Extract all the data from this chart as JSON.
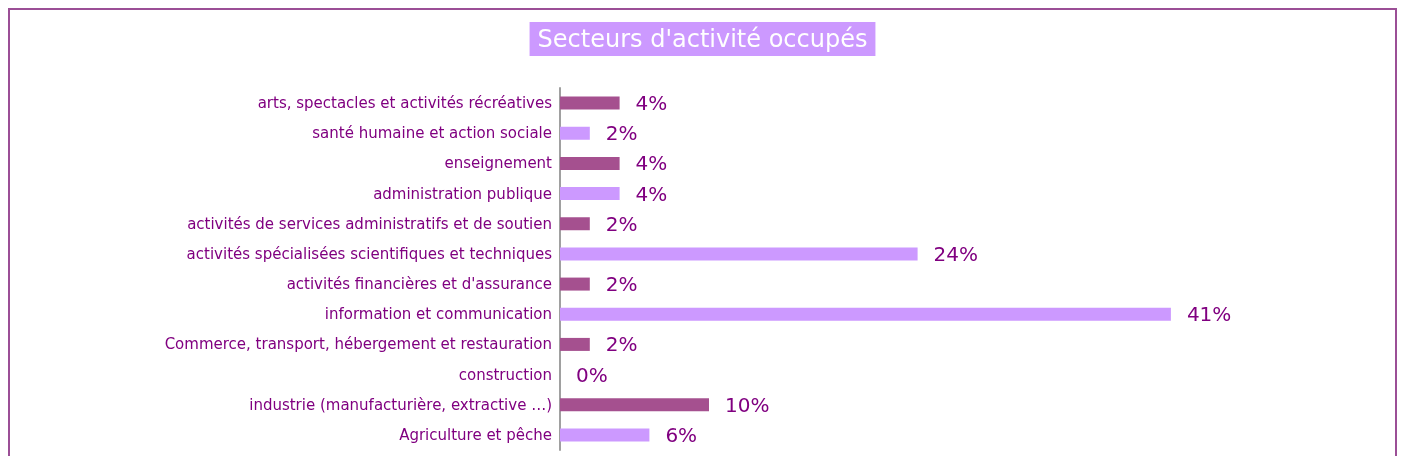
{
  "chart_data": {
    "type": "bar",
    "orientation": "horizontal",
    "title": "Secteurs d'activité occupés",
    "categories": [
      "arts, spectacles et activités récréatives",
      "santé humaine et action sociale",
      "enseignement",
      "administration publique",
      "activités de services administratifs et de soutien",
      "activités spécialisées scientifiques et techniques",
      "activités financières et d'assurance",
      "information et communication",
      "Commerce, transport, hébergement et restauration",
      "construction",
      "industrie (manufacturière, extractive …)",
      "Agriculture et pêche"
    ],
    "values": [
      4,
      2,
      4,
      4,
      2,
      24,
      2,
      41,
      2,
      0,
      10,
      6
    ],
    "value_labels": [
      "4%",
      "2%",
      "4%",
      "4%",
      "2%",
      "24%",
      "2%",
      "41%",
      "2%",
      "0%",
      "10%",
      "6%"
    ],
    "colors": [
      "#a5508f",
      "#cc99ff",
      "#a5508f",
      "#cc99ff",
      "#a5508f",
      "#cc99ff",
      "#a5508f",
      "#cc99ff",
      "#a5508f",
      "#cc99ff",
      "#a5508f",
      "#cc99ff"
    ]
  }
}
